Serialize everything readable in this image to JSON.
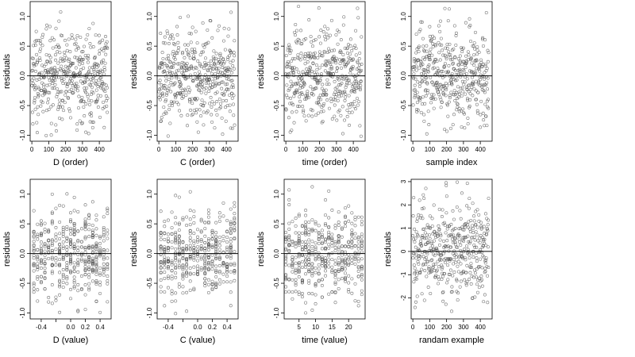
{
  "figure": {
    "ylabel": "residuals"
  },
  "chart_data": [
    {
      "type": "scatter",
      "xlabel": "D (order)",
      "ylabel": "residuals",
      "xlim": [
        -10,
        470
      ],
      "ylim": [
        -1.1,
        1.25
      ],
      "xticks": [
        {
          "v": 0,
          "label": "0"
        },
        {
          "v": 100,
          "label": "100"
        },
        {
          "v": 200,
          "label": "200"
        },
        {
          "v": 300,
          "label": "300"
        },
        {
          "v": 400,
          "label": "400"
        }
      ],
      "yticks": [
        {
          "v": -1,
          "label": "-1.0"
        },
        {
          "v": -0.5,
          "label": "-0.5"
        },
        {
          "v": 0,
          "label": "0.0"
        },
        {
          "v": 0.5,
          "label": "0.5"
        },
        {
          "v": 1,
          "label": "1.0"
        }
      ],
      "reference_line_y": 0,
      "n_points": 450,
      "x_kind": "index",
      "x_range": [
        0,
        450
      ],
      "y_scale": 0.38
    },
    {
      "type": "scatter",
      "xlabel": "C (order)",
      "ylabel": "residuals",
      "xlim": [
        -10,
        470
      ],
      "ylim": [
        -1.1,
        1.25
      ],
      "xticks": [
        {
          "v": 0,
          "label": "0"
        },
        {
          "v": 100,
          "label": "100"
        },
        {
          "v": 200,
          "label": "200"
        },
        {
          "v": 300,
          "label": "300"
        },
        {
          "v": 400,
          "label": "400"
        }
      ],
      "yticks": [
        {
          "v": -1,
          "label": "-1.0"
        },
        {
          "v": -0.5,
          "label": "-0.5"
        },
        {
          "v": 0,
          "label": "0.0"
        },
        {
          "v": 0.5,
          "label": "0.5"
        },
        {
          "v": 1,
          "label": "1.0"
        }
      ],
      "reference_line_y": 0,
      "n_points": 450,
      "x_kind": "index",
      "x_range": [
        0,
        450
      ],
      "y_scale": 0.38
    },
    {
      "type": "scatter",
      "xlabel": "time (order)",
      "ylabel": "residuals",
      "xlim": [
        -10,
        470
      ],
      "ylim": [
        -1.1,
        1.25
      ],
      "xticks": [
        {
          "v": 0,
          "label": "0"
        },
        {
          "v": 100,
          "label": "100"
        },
        {
          "v": 200,
          "label": "200"
        },
        {
          "v": 300,
          "label": "300"
        },
        {
          "v": 400,
          "label": "400"
        }
      ],
      "yticks": [
        {
          "v": -1,
          "label": "-1.0"
        },
        {
          "v": -0.5,
          "label": "-0.5"
        },
        {
          "v": 0,
          "label": "0.0"
        },
        {
          "v": 0.5,
          "label": "0.5"
        },
        {
          "v": 1,
          "label": "1.0"
        }
      ],
      "reference_line_y": 0,
      "n_points": 450,
      "x_kind": "index",
      "x_range": [
        0,
        450
      ],
      "y_scale": 0.38
    },
    {
      "type": "scatter",
      "xlabel": "sample index",
      "ylabel": "residuals",
      "xlim": [
        -10,
        470
      ],
      "ylim": [
        -1.1,
        1.25
      ],
      "xticks": [
        {
          "v": 0,
          "label": "0"
        },
        {
          "v": 100,
          "label": "100"
        },
        {
          "v": 200,
          "label": "200"
        },
        {
          "v": 300,
          "label": "300"
        },
        {
          "v": 400,
          "label": "400"
        }
      ],
      "yticks": [
        {
          "v": -1,
          "label": "-1.0"
        },
        {
          "v": -0.5,
          "label": "-0.5"
        },
        {
          "v": 0,
          "label": "0.0"
        },
        {
          "v": 0.5,
          "label": "0.5"
        },
        {
          "v": 1,
          "label": "1.0"
        }
      ],
      "reference_line_y": 0,
      "n_points": 450,
      "x_kind": "index",
      "x_range": [
        0,
        450
      ],
      "y_scale": 0.38
    },
    {
      "type": "scatter",
      "xlabel": "D (value)",
      "ylabel": "residuals",
      "xlim": [
        -0.55,
        0.55
      ],
      "ylim": [
        -1.1,
        1.25
      ],
      "xticks": [
        {
          "v": -0.4,
          "label": "-0.4"
        },
        {
          "v": -0.2,
          "label": ""
        },
        {
          "v": 0,
          "label": "0.0"
        },
        {
          "v": 0.2,
          "label": "0.2"
        },
        {
          "v": 0.4,
          "label": "0.4"
        }
      ],
      "yticks": [
        {
          "v": -1,
          "label": "-1.0"
        },
        {
          "v": -0.5,
          "label": "-0.5"
        },
        {
          "v": 0,
          "label": "0.0"
        },
        {
          "v": 0.5,
          "label": "0.5"
        },
        {
          "v": 1,
          "label": "1.0"
        }
      ],
      "reference_line_y": 0,
      "n_points": 450,
      "x_kind": "discrete",
      "x_levels": [
        -0.5,
        -0.45,
        -0.4,
        -0.35,
        -0.3,
        -0.25,
        -0.2,
        -0.15,
        -0.1,
        -0.05,
        0,
        0.05,
        0.1,
        0.15,
        0.2,
        0.25,
        0.3,
        0.35,
        0.4,
        0.45,
        0.5
      ],
      "y_scale": 0.38
    },
    {
      "type": "scatter",
      "xlabel": "C (value)",
      "ylabel": "residuals",
      "xlim": [
        -0.55,
        0.55
      ],
      "ylim": [
        -1.1,
        1.25
      ],
      "xticks": [
        {
          "v": -0.4,
          "label": "-0.4"
        },
        {
          "v": -0.2,
          "label": ""
        },
        {
          "v": 0,
          "label": "0.0"
        },
        {
          "v": 0.2,
          "label": "0.2"
        },
        {
          "v": 0.4,
          "label": "0.4"
        }
      ],
      "yticks": [
        {
          "v": -1,
          "label": "-1.0"
        },
        {
          "v": -0.5,
          "label": "-0.5"
        },
        {
          "v": 0,
          "label": "0.0"
        },
        {
          "v": 0.5,
          "label": "0.5"
        },
        {
          "v": 1,
          "label": "1.0"
        }
      ],
      "reference_line_y": 0,
      "n_points": 450,
      "x_kind": "discrete",
      "x_levels": [
        -0.5,
        -0.45,
        -0.4,
        -0.35,
        -0.3,
        -0.25,
        -0.2,
        -0.15,
        -0.1,
        -0.05,
        0,
        0.05,
        0.1,
        0.15,
        0.2,
        0.25,
        0.3,
        0.35,
        0.4,
        0.45,
        0.5
      ],
      "y_scale": 0.38
    },
    {
      "type": "scatter",
      "xlabel": "time (value)",
      "ylabel": "residuals",
      "xlim": [
        0.5,
        25
      ],
      "ylim": [
        -1.1,
        1.25
      ],
      "xticks": [
        {
          "v": 5,
          "label": "5"
        },
        {
          "v": 10,
          "label": "10"
        },
        {
          "v": 15,
          "label": "15"
        },
        {
          "v": 20,
          "label": "20"
        }
      ],
      "yticks": [
        {
          "v": -1,
          "label": "-1.0"
        },
        {
          "v": -0.5,
          "label": "-0.5"
        },
        {
          "v": 0,
          "label": "0.0"
        },
        {
          "v": 0.5,
          "label": "0.5"
        },
        {
          "v": 1,
          "label": "1.0"
        }
      ],
      "reference_line_y": 0,
      "n_points": 450,
      "x_kind": "discrete",
      "x_levels": [
        1,
        2,
        3,
        4,
        5,
        6,
        7,
        8,
        9,
        10,
        11,
        12,
        13,
        14,
        15,
        16,
        17,
        18,
        19,
        20,
        21,
        22,
        23,
        24
      ],
      "y_scale": 0.38
    },
    {
      "type": "scatter",
      "xlabel": "randam example",
      "ylabel": "residuals",
      "xlim": [
        -10,
        470
      ],
      "ylim": [
        -2.9,
        3.1
      ],
      "xticks": [
        {
          "v": 0,
          "label": "0"
        },
        {
          "v": 100,
          "label": "100"
        },
        {
          "v": 200,
          "label": "200"
        },
        {
          "v": 300,
          "label": "300"
        },
        {
          "v": 400,
          "label": "400"
        }
      ],
      "yticks": [
        {
          "v": -2,
          "label": "-2"
        },
        {
          "v": -1,
          "label": "-1"
        },
        {
          "v": 0,
          "label": "0"
        },
        {
          "v": 1,
          "label": "1"
        },
        {
          "v": 2,
          "label": "2"
        },
        {
          "v": 3,
          "label": "3"
        }
      ],
      "reference_line_y": 0,
      "n_points": 450,
      "x_kind": "index",
      "x_range": [
        0,
        450
      ],
      "y_scale": 1.0
    }
  ]
}
